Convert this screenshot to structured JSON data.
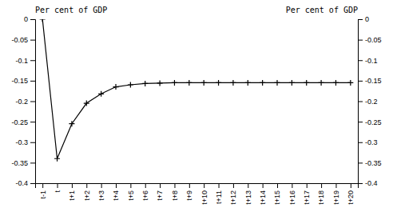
{
  "chart_data": {
    "type": "line",
    "categories": [
      "t-1",
      "t",
      "t+1",
      "t+2",
      "t+3",
      "t+4",
      "t+5",
      "t+6",
      "t+7",
      "t+8",
      "t+9",
      "t+10",
      "t+11",
      "t+12",
      "t+13",
      "t+14",
      "t+15",
      "t+16",
      "t+17",
      "t+18",
      "t+19",
      "t+20"
    ],
    "values": [
      0.0,
      -0.34,
      -0.255,
      -0.205,
      -0.182,
      -0.165,
      -0.16,
      -0.157,
      -0.156,
      -0.155,
      -0.155,
      -0.155,
      -0.155,
      -0.155,
      -0.155,
      -0.155,
      -0.155,
      -0.155,
      -0.155,
      -0.155,
      -0.155,
      -0.155
    ],
    "color": "#000000",
    "marker": "plus",
    "y_label": "Per cent of GDP",
    "y2_label": "Per cent of GDP",
    "ylim": [
      -0.4,
      0.0
    ],
    "yticks": [
      0,
      -0.05,
      -0.1,
      -0.15,
      -0.2,
      -0.25,
      -0.3,
      -0.35,
      -0.4
    ],
    "y2lim": [
      -0.4,
      0.0
    ],
    "y2ticks": [
      0,
      -0.05,
      -0.1,
      -0.15,
      -0.2,
      -0.25,
      -0.3,
      -0.35,
      -0.4
    ],
    "grid": false
  }
}
